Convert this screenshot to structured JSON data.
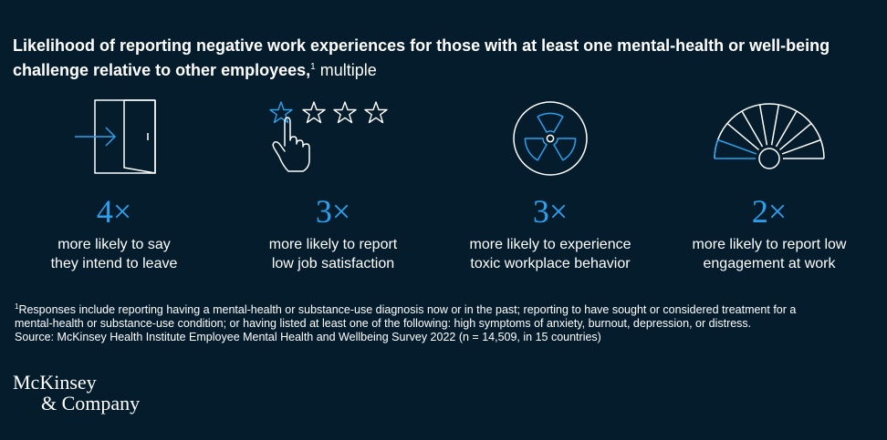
{
  "title": {
    "main": "Likelihood of reporting negative work experiences for those with at least one mental-health or well-being challenge relative to other employees,",
    "footnote_marker": "1",
    "unit": "multiple"
  },
  "stats": [
    {
      "icon": "door-exit-icon",
      "value": "4×",
      "desc_line1": "more likely to say",
      "desc_line2": "they intend to leave"
    },
    {
      "icon": "star-rating-hand-icon",
      "value": "3×",
      "desc_line1": "more likely to report",
      "desc_line2": "low job satisfaction"
    },
    {
      "icon": "hazard-symbol-icon",
      "value": "3×",
      "desc_line1": "more likely to experience",
      "desc_line2": "toxic workplace behavior"
    },
    {
      "icon": "gauge-meter-icon",
      "value": "2×",
      "desc_line1": "more likely to report low",
      "desc_line2": "engagement at work"
    }
  ],
  "footnote": {
    "marker": "1",
    "line1": "Responses include reporting having a mental-health or substance-use diagnosis now or in the past; reporting to have sought or considered treatment for a",
    "line2": "mental-health or substance-use condition; or having listed at least one of the following: high symptoms of anxiety, burnout, depression, or distress.",
    "source": "Source: McKinsey Health Institute Employee Mental Health and Wellbeing Survey 2022 (n = 14,509, in 15 countries)"
  },
  "logo": {
    "line1": "McKinsey",
    "line2": "& Company"
  },
  "colors": {
    "background": "#051c2c",
    "accent": "#2ba1ee",
    "text": "#ffffff"
  }
}
